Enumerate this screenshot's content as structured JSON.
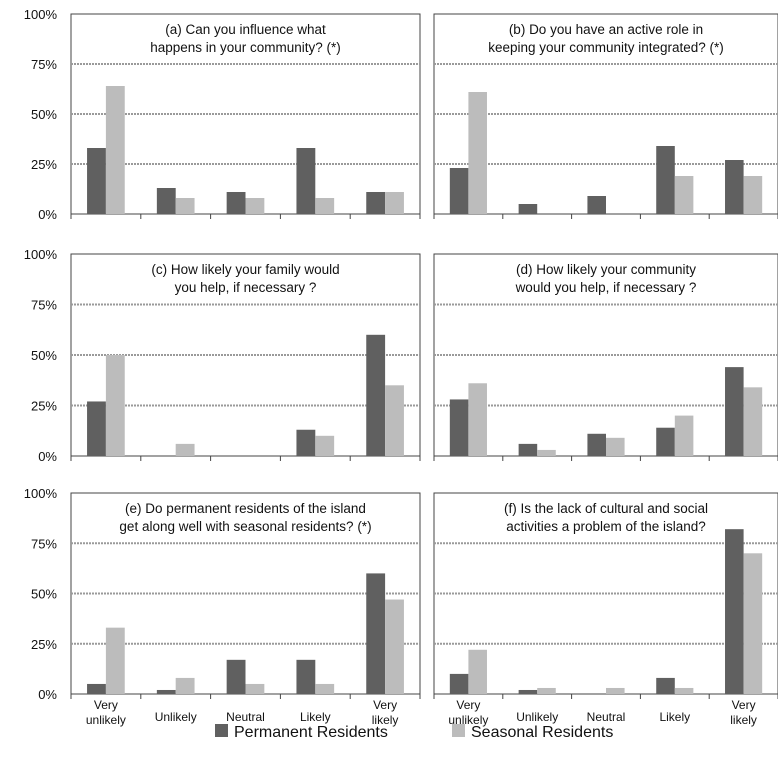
{
  "colors": {
    "permanent": "#606060",
    "seasonal": "#bcbcbc",
    "grid": "#9a9a9a",
    "axis": "#444444"
  },
  "legend": [
    {
      "label": "Permanent Residents",
      "color": "#606060"
    },
    {
      "label": "Seasonal Residents",
      "color": "#bcbcbc"
    }
  ],
  "y_ticks": [
    "100%",
    "75%",
    "50%",
    "25%",
    "0%"
  ],
  "categories": [
    [
      "Very",
      "unlikely"
    ],
    [
      "Unlikely"
    ],
    [
      "Neutral"
    ],
    [
      "Likely"
    ],
    [
      "Very",
      "likely"
    ]
  ],
  "chart_data": [
    {
      "type": "bar",
      "title": [
        "(a) Can you influence what",
        "happens in your community? (*)"
      ],
      "categories": [
        "Very unlikely",
        "Unlikely",
        "Neutral",
        "Likely",
        "Very likely"
      ],
      "ylim": [
        0,
        100
      ],
      "series": [
        {
          "name": "Permanent Residents",
          "values": [
            33,
            13,
            11,
            33,
            11
          ]
        },
        {
          "name": "Seasonal Residents",
          "values": [
            64,
            8,
            8,
            8,
            11
          ]
        }
      ]
    },
    {
      "type": "bar",
      "title": [
        "(b) Do you have an active role in",
        "keeping your community integrated? (*)"
      ],
      "categories": [
        "Very unlikely",
        "Unlikely",
        "Neutral",
        "Likely",
        "Very likely"
      ],
      "ylim": [
        0,
        100
      ],
      "series": [
        {
          "name": "Permanent Residents",
          "values": [
            23,
            5,
            9,
            34,
            27
          ]
        },
        {
          "name": "Seasonal Residents",
          "values": [
            61,
            0,
            0,
            19,
            19
          ]
        }
      ]
    },
    {
      "type": "bar",
      "title": [
        "(c) How likely your family  would",
        "you help, if necessary ?"
      ],
      "categories": [
        "Very unlikely",
        "Unlikely",
        "Neutral",
        "Likely",
        "Very likely"
      ],
      "ylim": [
        0,
        100
      ],
      "series": [
        {
          "name": "Permanent Residents",
          "values": [
            27,
            0,
            0,
            13,
            60
          ]
        },
        {
          "name": "Seasonal Residents",
          "values": [
            50,
            6,
            0,
            10,
            35
          ]
        }
      ]
    },
    {
      "type": "bar",
      "title": [
        "(d) How likely your community",
        "would  you help, if necessary ?"
      ],
      "categories": [
        "Very unlikely",
        "Unlikely",
        "Neutral",
        "Likely",
        "Very likely"
      ],
      "ylim": [
        0,
        100
      ],
      "series": [
        {
          "name": "Permanent Residents",
          "values": [
            28,
            6,
            11,
            14,
            44
          ]
        },
        {
          "name": "Seasonal Residents",
          "values": [
            36,
            3,
            9,
            20,
            34
          ]
        }
      ]
    },
    {
      "type": "bar",
      "title": [
        "(e) Do permanent residents of the island",
        "get along well with seasonal residents? (*)"
      ],
      "categories": [
        "Very unlikely",
        "Unlikely",
        "Neutral",
        "Likely",
        "Very likely"
      ],
      "ylim": [
        0,
        100
      ],
      "series": [
        {
          "name": "Permanent Residents",
          "values": [
            5,
            2,
            17,
            17,
            60
          ]
        },
        {
          "name": "Seasonal Residents",
          "values": [
            33,
            8,
            5,
            5,
            47
          ]
        }
      ]
    },
    {
      "type": "bar",
      "title": [
        "(f) Is the lack of cultural and social",
        "activities a problem of the island?"
      ],
      "categories": [
        "Very unlikely",
        "Unlikely",
        "Neutral",
        "Likely",
        "Very likely"
      ],
      "ylim": [
        0,
        100
      ],
      "series": [
        {
          "name": "Permanent Residents",
          "values": [
            10,
            2,
            0,
            8,
            82
          ]
        },
        {
          "name": "Seasonal Residents",
          "values": [
            22,
            3,
            3,
            3,
            70
          ]
        }
      ]
    }
  ]
}
